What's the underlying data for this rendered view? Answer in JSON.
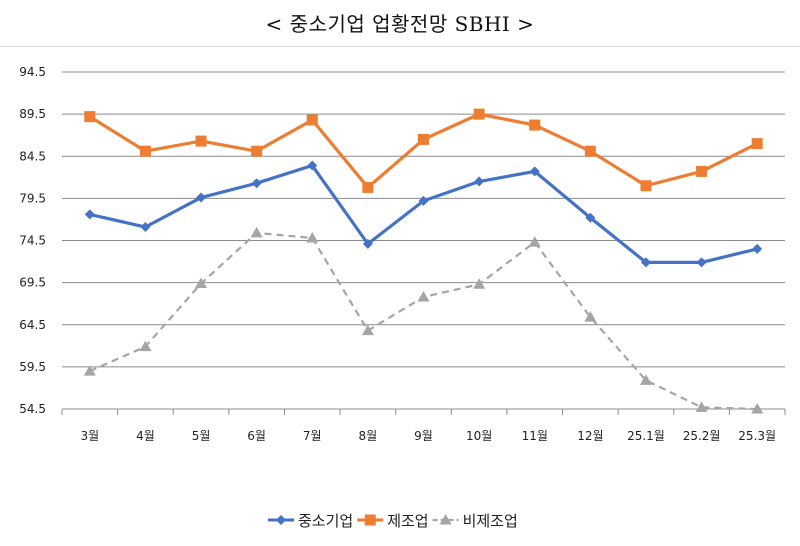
{
  "title": "< 중소기업 업황전망 SBHI >",
  "chart_data": {
    "type": "line",
    "title": "< 중소기업 업황전망 SBHI >",
    "categories": [
      "3월",
      "4월",
      "5월",
      "6월",
      "7월",
      "8월",
      "9월",
      "10월",
      "11월",
      "12월",
      "25.1월",
      "25.2월",
      "25.3월"
    ],
    "ylim": [
      54.5,
      94.5
    ],
    "yticks": [
      54.5,
      59.5,
      64.5,
      69.5,
      74.5,
      79.5,
      84.5,
      89.5,
      94.5
    ],
    "grid": true,
    "legend_position": "bottom",
    "series": [
      {
        "name": "중소기업",
        "color": "#4472C4",
        "marker": "diamond",
        "dash": false,
        "values": [
          77.6,
          76.1,
          79.6,
          81.3,
          83.4,
          74.1,
          79.2,
          81.5,
          82.7,
          77.2,
          71.9,
          71.9,
          73.5
        ]
      },
      {
        "name": "제조업",
        "color": "#ED7D31",
        "marker": "square",
        "dash": false,
        "values": [
          89.2,
          85.1,
          86.3,
          85.1,
          88.8,
          80.8,
          86.5,
          89.5,
          88.2,
          85.1,
          81.0,
          82.7,
          86.0
        ]
      },
      {
        "name": "비제조업",
        "color": "#A5A5A5",
        "marker": "triangle",
        "dash": true,
        "values": [
          59.0,
          61.9,
          69.4,
          75.4,
          74.8,
          63.8,
          67.8,
          69.3,
          74.3,
          65.4,
          57.9,
          54.7,
          54.5
        ]
      }
    ]
  }
}
